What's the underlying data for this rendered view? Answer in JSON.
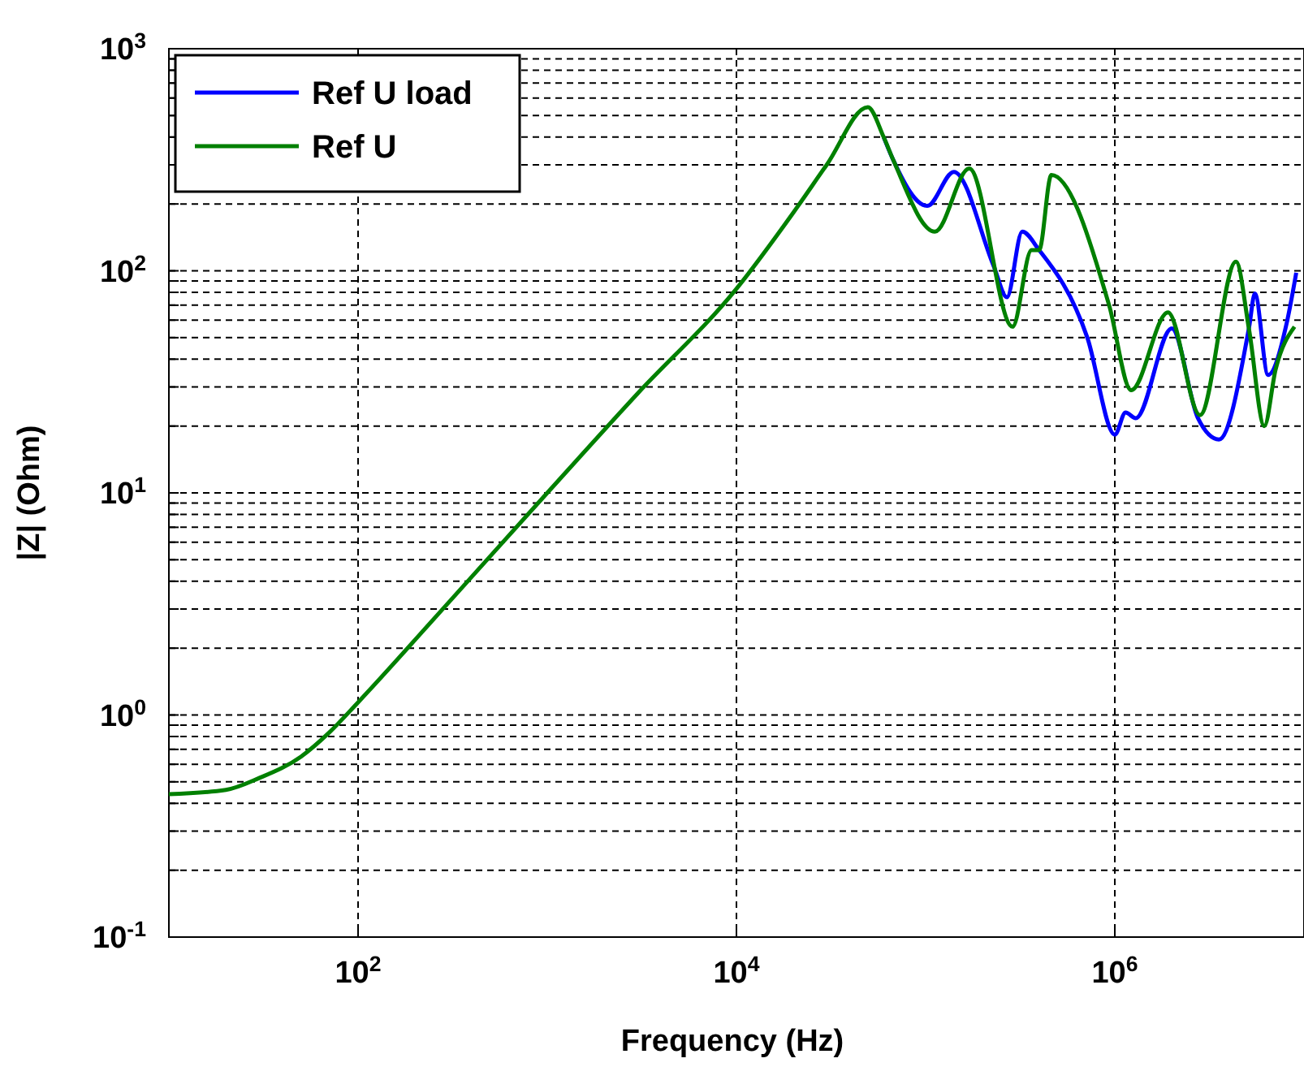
{
  "chart_data": {
    "type": "line",
    "xlabel": "Frequency (Hz)",
    "ylabel": "|Z| (Ohm)",
    "log": "xy",
    "grid": true,
    "legend": "top left",
    "line_style": "solid",
    "marker": "none",
    "xlim": [
      10,
      10000000
    ],
    "ylim": [
      0.1,
      1000
    ],
    "xticks": [
      {
        "value": 100,
        "label": "10$^{2}$"
      },
      {
        "value": 10000,
        "label": "10$^{4}$"
      },
      {
        "value": 1000000,
        "label": "10$^{6}$"
      }
    ],
    "yticks": [
      {
        "value": 0.1,
        "label": "10$^{-1}$"
      },
      {
        "value": 0.2,
        "label": null
      },
      {
        "value": 0.3,
        "label": null
      },
      {
        "value": 0.4,
        "label": null
      },
      {
        "value": 0.5,
        "label": null
      },
      {
        "value": 0.6,
        "label": null
      },
      {
        "value": 0.7,
        "label": null
      },
      {
        "value": 0.8,
        "label": null
      },
      {
        "value": 0.9,
        "label": null
      },
      {
        "value": 1,
        "label": "10$^{0}$"
      },
      {
        "value": 2,
        "label": null
      },
      {
        "value": 3,
        "label": null
      },
      {
        "value": 4,
        "label": null
      },
      {
        "value": 5,
        "label": null
      },
      {
        "value": 6,
        "label": null
      },
      {
        "value": 7,
        "label": null
      },
      {
        "value": 8,
        "label": null
      },
      {
        "value": 9,
        "label": null
      },
      {
        "value": 10,
        "label": "10$^{1}$"
      },
      {
        "value": 20,
        "label": null
      },
      {
        "value": 30,
        "label": null
      },
      {
        "value": 40,
        "label": null
      },
      {
        "value": 50,
        "label": null
      },
      {
        "value": 60,
        "label": null
      },
      {
        "value": 70,
        "label": null
      },
      {
        "value": 80,
        "label": null
      },
      {
        "value": 90,
        "label": null
      },
      {
        "value": 100,
        "label": "10$^{2}$"
      },
      {
        "value": 200,
        "label": null
      },
      {
        "value": 300,
        "label": null
      },
      {
        "value": 400,
        "label": null
      },
      {
        "value": 500,
        "label": null
      },
      {
        "value": 600,
        "label": null
      },
      {
        "value": 700,
        "label": null
      },
      {
        "value": 800,
        "label": null
      },
      {
        "value": 900,
        "label": null
      },
      {
        "value": 1000,
        "label": "10$^{3}$"
      }
    ],
    "series": [
      {
        "name": "Ref U load",
        "color": "#0000ff",
        "x": [
          60000,
          67600,
          102000,
          141000,
          229000,
          269000,
          324000,
          398000,
          716000,
          1000000,
          1140000,
          1290000,
          2000000,
          2750000,
          3550000,
          5130000,
          5500000,
          6460000,
          8130000,
          9100000
        ],
        "values": [
          400,
          314,
          196,
          279,
          105,
          76,
          150,
          124,
          50,
          18.3,
          23,
          21.7,
          55,
          21.7,
          17.4,
          56,
          79,
          34,
          59,
          98
        ]
      },
      {
        "name": "Ref U",
        "color": "#008000",
        "x": [
          10,
          20,
          30,
          50,
          70,
          100,
          300,
          1000,
          3000,
          10000,
          20000,
          30000,
          49500,
          60000,
          67600,
          112000,
          170000,
          288000,
          363000,
          398000,
          462000,
          933000,
          1220000,
          1910000,
          2820000,
          4370000,
          5130000,
          6170000,
          7080000,
          8910000
        ],
        "values": [
          0.44,
          0.46,
          0.52,
          0.65,
          0.83,
          1.14,
          3.2,
          10,
          28,
          83,
          183,
          300,
          545,
          400,
          314,
          150,
          289,
          56,
          124,
          124,
          270,
          70,
          29,
          65,
          22.4,
          110,
          54,
          20,
          36,
          56
        ]
      }
    ]
  }
}
